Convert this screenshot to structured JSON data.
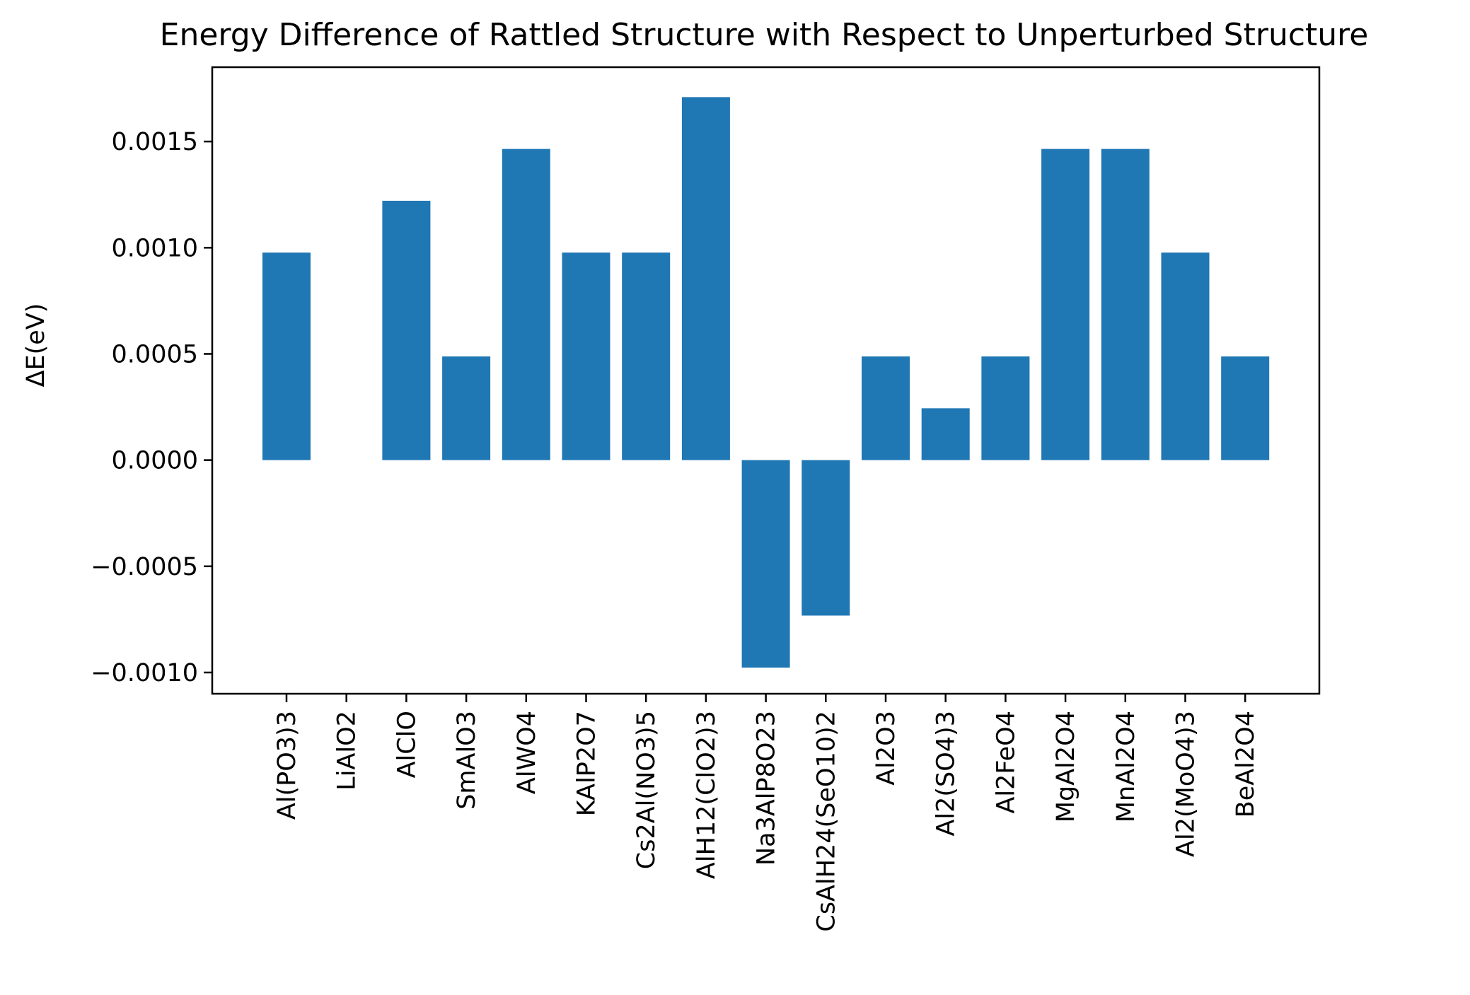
{
  "chart_data": {
    "type": "bar",
    "title": "Energy Difference of Rattled Structure with Respect to Unperturbed Structure",
    "xlabel": "",
    "ylabel": "ΔE(eV)",
    "ylim": [
      -0.0011,
      0.00185
    ],
    "yticks": [
      -0.001,
      -0.0005,
      0.0,
      0.0005,
      0.001,
      0.0015
    ],
    "ytick_labels": [
      "−0.0010",
      "−0.0005",
      "0.0000",
      "0.0005",
      "0.0010",
      "0.0015"
    ],
    "categories": [
      "Al(PO3)3",
      "LiAlO2",
      "AlClO",
      "SmAlO3",
      "AlWO4",
      "KAlP2O7",
      "Cs2Al(NO3)5",
      "AlH12(ClO2)3",
      "Na3AlP8O23",
      "CsAlH24(SeO10)2",
      "Al2O3",
      "Al2(SO4)3",
      "Al2FeO4",
      "MgAl2O4",
      "MnAl2O4",
      "Al2(MoO4)3",
      "BeAl2O4"
    ],
    "values": [
      0.000977,
      0.0,
      0.001221,
      0.000488,
      0.001465,
      0.000977,
      0.000977,
      0.001709,
      -0.000977,
      -0.000732,
      0.000488,
      0.000244,
      0.000488,
      0.001465,
      0.001465,
      0.000977,
      0.000488
    ],
    "bar_color": "#1f77b4",
    "grid": false,
    "legend": "none"
  }
}
